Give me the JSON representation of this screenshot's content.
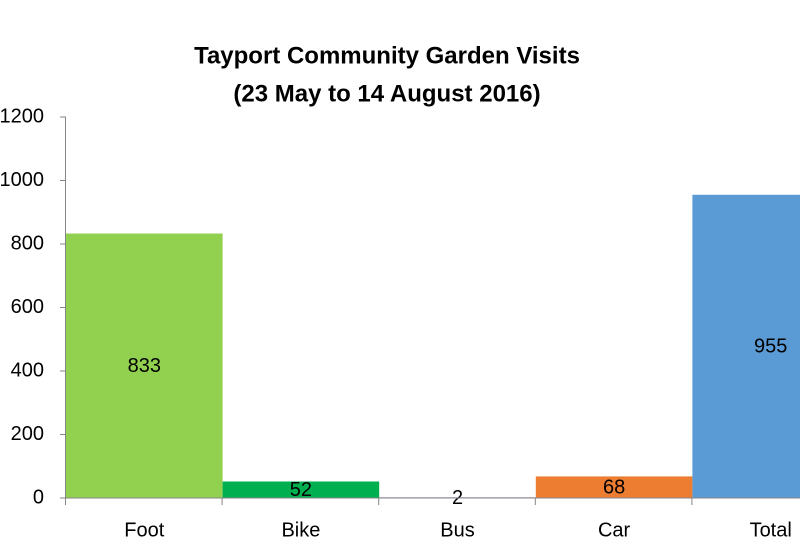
{
  "chart_data": {
    "type": "bar",
    "title": "Tayport Community Garden Visits",
    "subtitle": "(23 May to 14 August 2016)",
    "categories": [
      "Foot",
      "Bike",
      "Bus",
      "Car",
      "Total"
    ],
    "values": [
      833,
      52,
      2,
      68,
      955
    ],
    "colors": [
      "#92d050",
      "#00b050",
      "#7030a0",
      "#ed7d31",
      "#5b9bd5"
    ],
    "ylim": [
      0,
      1200
    ],
    "yticks": [
      0,
      200,
      400,
      600,
      800,
      1000,
      1200
    ],
    "grid": false
  }
}
